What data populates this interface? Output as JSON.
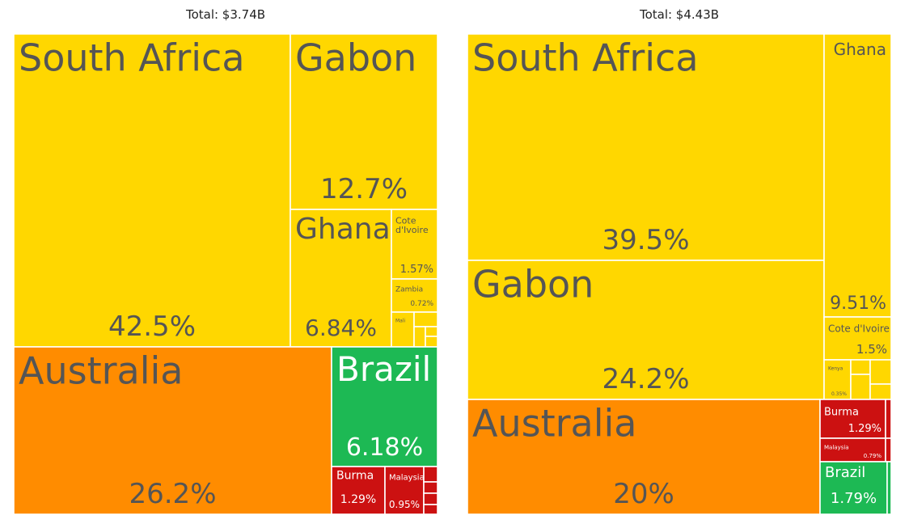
{
  "chart_data": [
    {
      "type": "treemap",
      "title": "Total: $3.74B",
      "total": "$3.74B",
      "colors": {
        "Africa": "#FFD700",
        "Oceania": "#FF8C00",
        "Americas": "#1DB954",
        "Asia": "#CC1111"
      },
      "tiles": [
        {
          "label": "South Africa",
          "share": 42.5,
          "value": "42.5%",
          "region": "Africa"
        },
        {
          "label": "Gabon",
          "share": 12.7,
          "value": "12.7%",
          "region": "Africa"
        },
        {
          "label": "Ghana",
          "share": 6.84,
          "value": "6.84%",
          "region": "Africa"
        },
        {
          "label": "Cote d'Ivoire",
          "share": 1.57,
          "value": "1.57%",
          "region": "Africa"
        },
        {
          "label": "Zambia",
          "share": 0.72,
          "value": "0.72%",
          "region": "Africa"
        },
        {
          "label": "Mali",
          "share": null,
          "value": "",
          "region": "Africa"
        },
        {
          "label": "",
          "share": null,
          "value": "",
          "region": "Africa"
        },
        {
          "label": "",
          "share": null,
          "value": "",
          "region": "Africa"
        },
        {
          "label": "",
          "share": null,
          "value": "",
          "region": "Africa"
        },
        {
          "label": "",
          "share": null,
          "value": "",
          "region": "Africa"
        },
        {
          "label": "Australia",
          "share": 26.2,
          "value": "26.2%",
          "region": "Oceania"
        },
        {
          "label": "Brazil",
          "share": 6.18,
          "value": "6.18%",
          "region": "Americas"
        },
        {
          "label": "Burma",
          "share": 1.29,
          "value": "1.29%",
          "region": "Asia"
        },
        {
          "label": "Malaysia",
          "share": 0.95,
          "value": "0.95%",
          "region": "Asia"
        },
        {
          "label": "",
          "share": null,
          "value": "",
          "region": "Asia"
        },
        {
          "label": "",
          "share": null,
          "value": "",
          "region": "Asia"
        },
        {
          "label": "",
          "share": null,
          "value": "",
          "region": "Asia"
        },
        {
          "label": "",
          "share": null,
          "value": "",
          "region": "Asia"
        }
      ]
    },
    {
      "type": "treemap",
      "title": "Total: $4.43B",
      "total": "$4.43B",
      "colors": {
        "Africa": "#FFD700",
        "Oceania": "#FF8C00",
        "Americas": "#1DB954",
        "Asia": "#CC1111"
      },
      "tiles": [
        {
          "label": "South Africa",
          "share": 39.5,
          "value": "39.5%",
          "region": "Africa"
        },
        {
          "label": "Gabon",
          "share": 24.2,
          "value": "24.2%",
          "region": "Africa"
        },
        {
          "label": "Ghana",
          "share": 9.51,
          "value": "9.51%",
          "region": "Africa"
        },
        {
          "label": "Cote d'Ivoire",
          "share": 1.5,
          "value": "1.5%",
          "region": "Africa"
        },
        {
          "label": "Kenya",
          "share": 0.35,
          "value": "0.35%",
          "region": "Africa"
        },
        {
          "label": "",
          "share": null,
          "value": "",
          "region": "Africa"
        },
        {
          "label": "",
          "share": null,
          "value": "",
          "region": "Africa"
        },
        {
          "label": "",
          "share": null,
          "value": "",
          "region": "Africa"
        },
        {
          "label": "",
          "share": null,
          "value": "",
          "region": "Africa"
        },
        {
          "label": "Australia",
          "share": 20,
          "value": "20%",
          "region": "Oceania"
        },
        {
          "label": "Burma",
          "share": 1.29,
          "value": "1.29%",
          "region": "Asia"
        },
        {
          "label": "Malaysia",
          "share": 0.79,
          "value": "0.79%",
          "region": "Asia"
        },
        {
          "label": "",
          "share": null,
          "value": "",
          "region": "Asia"
        },
        {
          "label": "",
          "share": null,
          "value": "",
          "region": "Asia"
        },
        {
          "label": "Brazil",
          "share": 1.79,
          "value": "1.79%",
          "region": "Americas"
        },
        {
          "label": "",
          "share": null,
          "value": "",
          "region": "Americas"
        }
      ]
    }
  ]
}
